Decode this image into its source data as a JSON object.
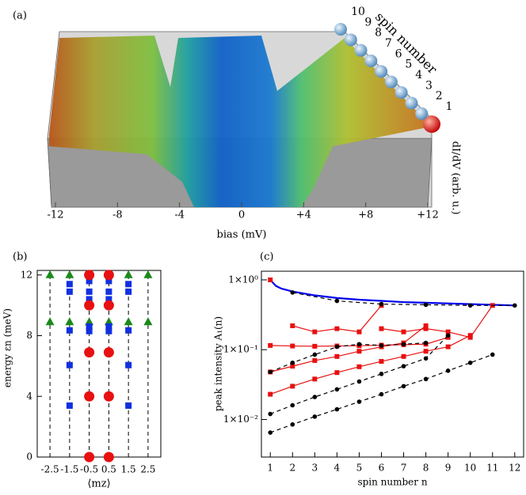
{
  "chart_data": [
    {
      "type": "surface3d",
      "panel_label": "(a)",
      "xlabel": "bias (mV)",
      "zlabel": "dI/dV (arb. u.)",
      "ylabel": "spin number",
      "xlim": [
        -12,
        12
      ],
      "xticks": [
        -12,
        -8,
        -4,
        0,
        {
          "value": 4,
          "label": "+4"
        },
        {
          "value": 8,
          "label": "+8"
        },
        {
          "value": 12,
          "label": "+12"
        }
      ],
      "ylim": [
        1,
        10
      ],
      "yticks": [
        1,
        2,
        3,
        4,
        5,
        6,
        7,
        8,
        9,
        10
      ]
    },
    {
      "type": "scatter",
      "panel_label": "(b)",
      "xlabel": "⟨mz⟩",
      "ylabel": "energy εn (meV)",
      "xlim": [
        -3.15,
        3.15
      ],
      "xticks": [
        -2.5,
        -1.5,
        -0.5,
        0.5,
        1.5,
        2.5
      ],
      "ylim": [
        0,
        12.3
      ],
      "yticks": [
        0,
        4,
        8,
        12
      ],
      "series": [
        {
          "marker": "triangle",
          "color": "#1a8a1a",
          "x": [
            -2.5,
            -2.5,
            -1.5,
            -1.5,
            -0.5,
            0.5,
            1.5,
            1.5,
            2.5,
            2.5
          ],
          "y": [
            12,
            8.9,
            12,
            8.9,
            8.9,
            8.9,
            12,
            8.9,
            12,
            8.9
          ]
        },
        {
          "marker": "square",
          "color": "#1030e0",
          "x": [
            -1.5,
            -1.5,
            -1.5,
            -1.5,
            -1.5,
            -0.5,
            -0.5,
            -0.5,
            -0.5,
            -0.5,
            0.5,
            0.5,
            0.5,
            0.5,
            0.5,
            1.5,
            1.5,
            1.5,
            1.5,
            1.5
          ],
          "y": [
            11.4,
            10.9,
            8.35,
            6.06,
            3.39,
            11.6,
            10.9,
            10.4,
            8.6,
            8.3,
            11.6,
            10.9,
            10.4,
            8.6,
            8.3,
            11.4,
            10.9,
            8.35,
            6.06,
            3.39
          ]
        },
        {
          "marker": "circle",
          "color": "#e81010",
          "x": [
            -0.5,
            -0.5,
            -0.5,
            -0.5,
            -0.5,
            0.5,
            0.5,
            0.5,
            0.5,
            0.5
          ],
          "y": [
            12,
            10,
            6.9,
            4,
            0,
            12,
            10,
            6.9,
            4,
            0
          ]
        }
      ]
    },
    {
      "type": "line",
      "panel_label": "(c)",
      "xlabel": "spin number n",
      "ylabel": "peak intensity A₁(n)",
      "log_y": true,
      "xlim": [
        0.6,
        12.4
      ],
      "xticks": [
        1,
        2,
        3,
        4,
        5,
        6,
        7,
        8,
        9,
        10,
        11,
        12
      ],
      "ylim": [
        0.0029,
        1.33
      ],
      "yticks": [
        {
          "value": 1,
          "label": "1×10⁰"
        },
        {
          "value": 0.1,
          "label": "1×10⁻¹"
        },
        {
          "value": 0.01,
          "label": "1×10⁻²"
        }
      ],
      "series": [
        {
          "color": "#0000ee",
          "style": "solid",
          "marker": "none",
          "x": [
            1,
            1.25,
            1.5,
            2,
            3,
            4,
            5,
            6,
            7,
            8,
            9,
            10,
            11,
            12
          ],
          "y": [
            1.0,
            0.82,
            0.75,
            0.68,
            0.6,
            0.55,
            0.52,
            0.5,
            0.48,
            0.47,
            0.46,
            0.45,
            0.44,
            0.43
          ]
        },
        {
          "color": "#e81010",
          "style": "solid",
          "marker": "square",
          "x": [
            1
          ],
          "y": [
            1.0
          ]
        },
        {
          "color": "#e81010",
          "style": "solid",
          "marker": "square",
          "x": [
            1,
            2,
            3,
            4,
            5,
            6,
            7,
            8,
            9
          ],
          "y": [
            0.115,
            0.113,
            0.112,
            0.113,
            0.114,
            0.116,
            0.118,
            0.12,
            0.15
          ]
        },
        {
          "color": "#e81010",
          "style": "solid",
          "marker": "square",
          "x": [
            1,
            2,
            3,
            4,
            5,
            6,
            7,
            8
          ],
          "y": [
            0.048,
            0.058,
            0.07,
            0.08,
            0.095,
            0.11,
            0.125,
            0.22
          ]
        },
        {
          "color": "#e81010",
          "style": "solid",
          "marker": "square",
          "x": [
            1,
            2,
            3,
            4,
            5,
            6,
            7,
            8,
            9,
            10
          ],
          "y": [
            0.023,
            0.03,
            0.038,
            0.047,
            0.057,
            0.068,
            0.08,
            0.095,
            0.11,
            0.16
          ]
        },
        {
          "color": "#e81010",
          "style": "solid",
          "marker": "square",
          "x": [
            2,
            3,
            4,
            5,
            6
          ],
          "y": [
            0.22,
            0.18,
            0.2,
            0.18,
            0.43
          ]
        },
        {
          "color": "#e81010",
          "style": "solid",
          "marker": "square",
          "x": [
            6,
            7,
            8,
            9,
            10,
            11
          ],
          "y": [
            0.2,
            0.18,
            0.2,
            0.18,
            0.15,
            0.43
          ]
        },
        {
          "color": "#000000",
          "style": "dashed",
          "marker": "circle",
          "x": [
            1,
            2,
            3,
            4,
            5,
            6,
            7,
            8,
            9,
            10,
            11
          ],
          "y": [
            0.0065,
            0.0085,
            0.011,
            0.014,
            0.018,
            0.023,
            0.03,
            0.038,
            0.05,
            0.065,
            0.085
          ]
        },
        {
          "color": "#000000",
          "style": "dashed",
          "marker": "circle",
          "x": [
            1,
            2,
            3,
            4,
            5,
            6,
            7,
            8,
            9
          ],
          "y": [
            0.012,
            0.016,
            0.021,
            0.027,
            0.035,
            0.045,
            0.058,
            0.075,
            0.16
          ]
        },
        {
          "color": "#000000",
          "style": "dashed",
          "marker": "circle",
          "x": [
            1,
            2,
            3,
            4,
            5,
            6,
            7,
            8
          ],
          "y": [
            0.048,
            0.065,
            0.085,
            0.11,
            0.12,
            0.115,
            0.12,
            0.125
          ]
        },
        {
          "color": "#000000",
          "style": "dashed",
          "marker": "circle",
          "x": [
            2,
            4,
            6,
            8,
            10,
            12
          ],
          "y": [
            0.66,
            0.5,
            0.45,
            0.44,
            0.43,
            0.43
          ]
        }
      ]
    }
  ]
}
